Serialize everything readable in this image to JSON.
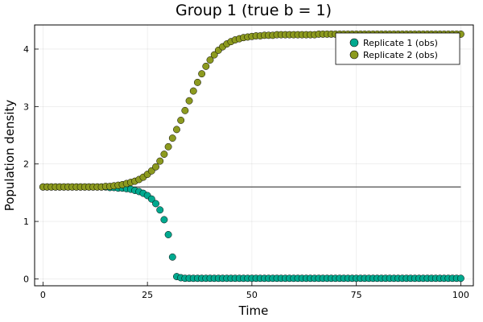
{
  "chart_data": {
    "type": "scatter",
    "title": "Group 1 (true b = 1)",
    "xlabel": "Time",
    "ylabel": "Population density",
    "xlim": [
      -2,
      103
    ],
    "ylim": [
      -0.12,
      4.42
    ],
    "xticks": [
      0,
      25,
      50,
      75,
      100
    ],
    "yticks": [
      0,
      1,
      2,
      3,
      4
    ],
    "grid": true,
    "legend_position": "top-right",
    "hline": {
      "y": 1.6,
      "color": "#4d4d4d"
    },
    "series": [
      {
        "name": "Replicate 1 (obs)",
        "color": "#00a98f",
        "x": [
          0,
          1,
          2,
          3,
          4,
          5,
          6,
          7,
          8,
          9,
          10,
          11,
          12,
          13,
          14,
          15,
          16,
          17,
          18,
          19,
          20,
          21,
          22,
          23,
          24,
          25,
          26,
          27,
          28,
          29,
          30,
          31,
          32,
          33,
          34,
          35,
          36,
          37,
          38,
          39,
          40,
          41,
          42,
          43,
          44,
          45,
          46,
          47,
          48,
          49,
          50,
          51,
          52,
          53,
          54,
          55,
          56,
          57,
          58,
          59,
          60,
          61,
          62,
          63,
          64,
          65,
          66,
          67,
          68,
          69,
          70,
          71,
          72,
          73,
          74,
          75,
          76,
          77,
          78,
          79,
          80,
          81,
          82,
          83,
          84,
          85,
          86,
          87,
          88,
          89,
          90,
          91,
          92,
          93,
          94,
          95,
          96,
          97,
          98,
          99,
          100
        ],
        "y": [
          1.6,
          1.6,
          1.6,
          1.6,
          1.6,
          1.6,
          1.6,
          1.6,
          1.6,
          1.6,
          1.6,
          1.6,
          1.6,
          1.6,
          1.6,
          1.6,
          1.59,
          1.59,
          1.58,
          1.58,
          1.57,
          1.56,
          1.54,
          1.52,
          1.49,
          1.45,
          1.39,
          1.31,
          1.2,
          1.03,
          0.77,
          0.38,
          0.04,
          0.02,
          0.01,
          0.01,
          0.01,
          0.01,
          0.01,
          0.01,
          0.01,
          0.01,
          0.01,
          0.01,
          0.01,
          0.01,
          0.01,
          0.01,
          0.01,
          0.01,
          0.01,
          0.01,
          0.01,
          0.01,
          0.01,
          0.01,
          0.01,
          0.01,
          0.01,
          0.01,
          0.01,
          0.01,
          0.01,
          0.01,
          0.01,
          0.01,
          0.01,
          0.01,
          0.01,
          0.01,
          0.01,
          0.01,
          0.01,
          0.01,
          0.01,
          0.01,
          0.01,
          0.01,
          0.01,
          0.01,
          0.01,
          0.01,
          0.01,
          0.01,
          0.01,
          0.01,
          0.01,
          0.01,
          0.01,
          0.01,
          0.01,
          0.01,
          0.01,
          0.01,
          0.01,
          0.01,
          0.01,
          0.01,
          0.01,
          0.01,
          0.01
        ]
      },
      {
        "name": "Replicate 2 (obs)",
        "color": "#8c9a1f",
        "x": [
          0,
          1,
          2,
          3,
          4,
          5,
          6,
          7,
          8,
          9,
          10,
          11,
          12,
          13,
          14,
          15,
          16,
          17,
          18,
          19,
          20,
          21,
          22,
          23,
          24,
          25,
          26,
          27,
          28,
          29,
          30,
          31,
          32,
          33,
          34,
          35,
          36,
          37,
          38,
          39,
          40,
          41,
          42,
          43,
          44,
          45,
          46,
          47,
          48,
          49,
          50,
          51,
          52,
          53,
          54,
          55,
          56,
          57,
          58,
          59,
          60,
          61,
          62,
          63,
          64,
          65,
          66,
          67,
          68,
          69,
          70,
          71,
          72,
          73,
          74,
          75,
          76,
          77,
          78,
          79,
          80,
          81,
          82,
          83,
          84,
          85,
          86,
          87,
          88,
          89,
          90,
          91,
          92,
          93,
          94,
          95,
          96,
          97,
          98,
          99,
          100
        ],
        "y": [
          1.6,
          1.6,
          1.6,
          1.6,
          1.6,
          1.6,
          1.6,
          1.6,
          1.6,
          1.6,
          1.6,
          1.6,
          1.6,
          1.6,
          1.6,
          1.61,
          1.61,
          1.62,
          1.63,
          1.64,
          1.66,
          1.68,
          1.7,
          1.73,
          1.77,
          1.82,
          1.88,
          1.95,
          2.05,
          2.17,
          2.3,
          2.45,
          2.6,
          2.76,
          2.93,
          3.1,
          3.27,
          3.42,
          3.57,
          3.7,
          3.81,
          3.9,
          3.98,
          4.04,
          4.09,
          4.13,
          4.16,
          4.18,
          4.2,
          4.21,
          4.22,
          4.23,
          4.23,
          4.24,
          4.24,
          4.24,
          4.25,
          4.25,
          4.25,
          4.25,
          4.25,
          4.25,
          4.25,
          4.25,
          4.25,
          4.25,
          4.26,
          4.26,
          4.26,
          4.26,
          4.26,
          4.26,
          4.26,
          4.26,
          4.26,
          4.26,
          4.26,
          4.26,
          4.26,
          4.26,
          4.26,
          4.26,
          4.26,
          4.26,
          4.26,
          4.26,
          4.26,
          4.26,
          4.26,
          4.26,
          4.26,
          4.26,
          4.26,
          4.26,
          4.26,
          4.26,
          4.26,
          4.26,
          4.26,
          4.26,
          4.26
        ]
      }
    ]
  }
}
